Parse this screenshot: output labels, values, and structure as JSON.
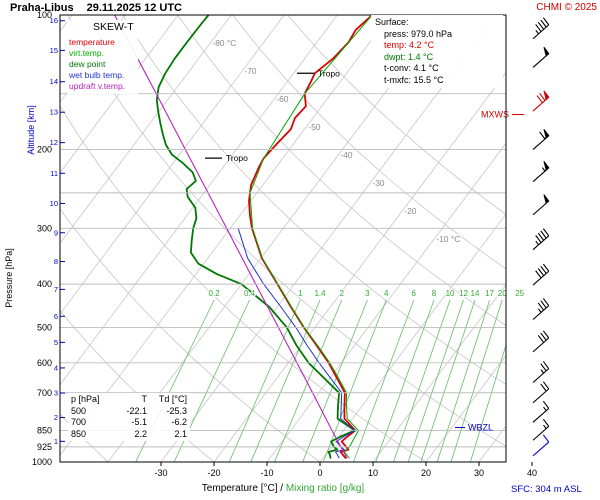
{
  "header": {
    "station": "Praha-Libus",
    "datetime": "29.11.2025 12 UTC",
    "copyright": "CHMI © 2025"
  },
  "colors": {
    "copyright": "#cc0000",
    "axis_blue": "#0000cc",
    "mixing_green": "#33aa33",
    "grid": "#bdbdbd"
  },
  "legend": {
    "title": "SKEW-T",
    "items": [
      {
        "label": "temperature",
        "color": "#dd0000"
      },
      {
        "label": "virt.temp.",
        "color": "#00aa00"
      },
      {
        "label": "dew point",
        "color": "#007700"
      },
      {
        "label": "wet bulb temp.",
        "color": "#2233cc"
      },
      {
        "label": "updraft v.temp.",
        "color": "#bb22bb"
      }
    ]
  },
  "surface_info": {
    "title": "Surface:",
    "rows": [
      {
        "text": "press: 979.0 hPa",
        "color": "#000000"
      },
      {
        "text": "temp: 4.2 °C",
        "color": "#dd0000"
      },
      {
        "text": "dwpt: 1.4 °C",
        "color": "#007700"
      },
      {
        "text": "t-conv: 4.1 °C",
        "color": "#000000"
      },
      {
        "text": "t-mxfc: 15.5 °C",
        "color": "#000000"
      }
    ]
  },
  "level_table": {
    "headers": [
      "p [hPa]",
      "T",
      "Td [°C]"
    ],
    "rows": [
      [
        "500",
        "-22.1",
        "-25.3"
      ],
      [
        "700",
        "-5.1",
        "-6.2"
      ],
      [
        "850",
        "2.2",
        "2.1"
      ]
    ]
  },
  "labels": {
    "tropo": "Tropo",
    "mxws": "MXWS",
    "wbzl": "WBZL",
    "sfc": "SFC: 304 m ASL",
    "x_axis_black": "Temperature [°C] /",
    "x_axis_green": "Mixing ratio [g/kg]",
    "pressure_axis": "Pressure [hPa]",
    "altitude_axis": "Altitude [km]"
  },
  "chart_data": {
    "type": "line",
    "variant": "skew-t-log-p",
    "title": "Skew-T diagram Praha-Libus 29.11.2025 12 UTC",
    "x_axis": {
      "label": "Temperature [°C]",
      "ticks": [
        -30,
        -20,
        -10,
        0,
        10,
        20,
        30,
        40
      ]
    },
    "y_axis": {
      "label": "Pressure [hPa]",
      "scale": "log",
      "range": [
        100,
        1000
      ],
      "gridline_ticks": [
        100,
        150,
        200,
        250,
        300,
        400,
        500,
        600,
        700,
        850,
        925,
        1000
      ],
      "labeled_ticks": [
        100,
        200,
        300,
        400,
        500,
        600,
        700,
        850,
        925,
        1000
      ]
    },
    "altitude_ticks": [
      {
        "km": 1,
        "hpa": 899
      },
      {
        "km": 2,
        "hpa": 795
      },
      {
        "km": 3,
        "hpa": 701
      },
      {
        "km": 4,
        "hpa": 616
      },
      {
        "km": 5,
        "hpa": 540
      },
      {
        "km": 6,
        "hpa": 472
      },
      {
        "km": 7,
        "hpa": 411
      },
      {
        "km": 8,
        "hpa": 356
      },
      {
        "km": 9,
        "hpa": 307
      },
      {
        "km": 10,
        "hpa": 264
      },
      {
        "km": 11,
        "hpa": 226
      },
      {
        "km": 12,
        "hpa": 193
      },
      {
        "km": 13,
        "hpa": 165
      },
      {
        "km": 14,
        "hpa": 141
      },
      {
        "km": 15,
        "hpa": 120
      },
      {
        "km": 16,
        "hpa": 103
      }
    ],
    "isotherm_labels": [
      {
        "t": -80,
        "label": "-80 °C"
      },
      {
        "t": -70,
        "label": "-70"
      },
      {
        "t": -60,
        "label": "-60"
      },
      {
        "t": -50,
        "label": "-50"
      },
      {
        "t": -40,
        "label": "-40"
      },
      {
        "t": -30,
        "label": "-30"
      },
      {
        "t": -20,
        "label": "-20"
      },
      {
        "t": -10,
        "label": "-10 °C"
      }
    ],
    "isotherm_range_c": [
      -120,
      40
    ],
    "isotherm_step_c": 10,
    "dry_adiabats_theta_c": [
      -40,
      -20,
      0,
      20,
      40,
      60,
      80,
      100,
      120
    ],
    "mixing_ratio_lines_gkg": [
      0.2,
      0.4,
      1,
      1.4,
      2,
      3,
      4,
      6,
      8,
      10,
      12,
      14,
      17,
      20,
      25
    ],
    "tropopauses_hpa": [
      209,
      135
    ],
    "mxws_hpa": 167,
    "wbzl_hpa": 837,
    "series": [
      {
        "name": "temperature",
        "color": "#dd0000",
        "width": 1.8,
        "points": [
          [
            979,
            4.2
          ],
          [
            962,
            3.2
          ],
          [
            950,
            2.5
          ],
          [
            938,
            3.6
          ],
          [
            925,
            2.8
          ],
          [
            900,
            1.2
          ],
          [
            875,
            1.6
          ],
          [
            850,
            2.2
          ],
          [
            800,
            -1.5
          ],
          [
            750,
            -3.3
          ],
          [
            700,
            -5.1
          ],
          [
            650,
            -8.6
          ],
          [
            600,
            -12.4
          ],
          [
            550,
            -17.0
          ],
          [
            500,
            -22.1
          ],
          [
            450,
            -27.4
          ],
          [
            400,
            -33.2
          ],
          [
            350,
            -39.8
          ],
          [
            300,
            -45.9
          ],
          [
            280,
            -48.2
          ],
          [
            260,
            -50.4
          ],
          [
            240,
            -52.2
          ],
          [
            220,
            -53.2
          ],
          [
            209,
            -53.6
          ],
          [
            195,
            -53.2
          ],
          [
            180,
            -52.6
          ],
          [
            170,
            -53.4
          ],
          [
            160,
            -53.0
          ],
          [
            150,
            -55.0
          ],
          [
            140,
            -55.6
          ],
          [
            135,
            -56.0
          ],
          [
            125,
            -54.6
          ],
          [
            115,
            -54.0
          ],
          [
            108,
            -54.4
          ],
          [
            100,
            -53.4
          ]
        ]
      },
      {
        "name": "virt_temp",
        "color": "#00aa00",
        "width": 1.0,
        "points": [
          [
            979,
            4.9
          ],
          [
            950,
            3.2
          ],
          [
            925,
            3.4
          ],
          [
            850,
            2.8
          ],
          [
            800,
            -1.0
          ],
          [
            750,
            -2.9
          ],
          [
            700,
            -4.8
          ],
          [
            650,
            -8.3
          ],
          [
            600,
            -12.2
          ],
          [
            550,
            -16.8
          ],
          [
            500,
            -22.0
          ],
          [
            450,
            -27.3
          ],
          [
            400,
            -33.1
          ],
          [
            350,
            -39.7
          ],
          [
            300,
            -45.8
          ],
          [
            250,
            -51.3
          ],
          [
            209,
            -53.6
          ],
          [
            150,
            -55.0
          ],
          [
            100,
            -53.4
          ]
        ]
      },
      {
        "name": "dew_point",
        "color": "#007700",
        "width": 1.8,
        "points": [
          [
            979,
            1.4
          ],
          [
            962,
            0.8
          ],
          [
            950,
            0.2
          ],
          [
            938,
            1.5
          ],
          [
            925,
            0.5
          ],
          [
            900,
            -0.8
          ],
          [
            875,
            0.4
          ],
          [
            850,
            2.1
          ],
          [
            800,
            -2.8
          ],
          [
            750,
            -4.5
          ],
          [
            700,
            -6.2
          ],
          [
            650,
            -11.0
          ],
          [
            600,
            -16.2
          ],
          [
            550,
            -20.8
          ],
          [
            500,
            -25.3
          ],
          [
            450,
            -31.5
          ],
          [
            400,
            -40.0
          ],
          [
            380,
            -46.0
          ],
          [
            360,
            -51.0
          ],
          [
            340,
            -54.0
          ],
          [
            320,
            -55.5
          ],
          [
            300,
            -57.0
          ],
          [
            285,
            -57.8
          ],
          [
            270,
            -59.5
          ],
          [
            255,
            -62.5
          ],
          [
            245,
            -63.8
          ],
          [
            235,
            -63.2
          ],
          [
            225,
            -65.0
          ],
          [
            215,
            -68.0
          ],
          [
            205,
            -71.5
          ],
          [
            195,
            -74.0
          ],
          [
            185,
            -76.0
          ],
          [
            175,
            -78.0
          ],
          [
            165,
            -80.0
          ],
          [
            155,
            -82.0
          ],
          [
            145,
            -83.5
          ],
          [
            135,
            -84.2
          ],
          [
            125,
            -84.5
          ],
          [
            115,
            -84.5
          ],
          [
            105,
            -84.4
          ],
          [
            100,
            -84.3
          ]
        ]
      },
      {
        "name": "wet_bulb",
        "color": "#2233cc",
        "width": 1.0,
        "points": [
          [
            979,
            3.0
          ],
          [
            962,
            2.2
          ],
          [
            950,
            1.5
          ],
          [
            938,
            2.8
          ],
          [
            925,
            1.8
          ],
          [
            900,
            0.2
          ],
          [
            875,
            1.0
          ],
          [
            850,
            2.1
          ],
          [
            800,
            -2.2
          ],
          [
            750,
            -3.9
          ],
          [
            700,
            -5.7
          ],
          [
            650,
            -9.8
          ],
          [
            600,
            -14.2
          ],
          [
            550,
            -18.8
          ],
          [
            500,
            -23.6
          ],
          [
            450,
            -29.3
          ],
          [
            400,
            -35.8
          ],
          [
            350,
            -42.5
          ],
          [
            300,
            -48.5
          ]
        ]
      },
      {
        "name": "updraft_virt_temp",
        "color": "#bb22bb",
        "width": 1.1,
        "points": [
          [
            979,
            4.5
          ],
          [
            925,
            1.8
          ],
          [
            850,
            -2.2
          ],
          [
            700,
            -11.2
          ],
          [
            600,
            -18.4
          ],
          [
            500,
            -26.9
          ],
          [
            400,
            -37.3
          ],
          [
            300,
            -50.7
          ],
          [
            250,
            -59.2
          ],
          [
            200,
            -69.6
          ],
          [
            150,
            -83.0
          ],
          [
            100,
            -102.0
          ]
        ]
      }
    ],
    "wind_barbs": [
      {
        "p": 113,
        "speed_kt": 45,
        "color": "#000000"
      },
      {
        "p": 131,
        "speed_kt": 50,
        "color": "#000000"
      },
      {
        "p": 164,
        "speed_kt": 70,
        "color": "#cc0000"
      },
      {
        "p": 200,
        "speed_kt": 60,
        "color": "#000000"
      },
      {
        "p": 236,
        "speed_kt": 55,
        "color": "#000000"
      },
      {
        "p": 280,
        "speed_kt": 50,
        "color": "#000000"
      },
      {
        "p": 335,
        "speed_kt": 45,
        "color": "#000000"
      },
      {
        "p": 402,
        "speed_kt": 40,
        "color": "#000000"
      },
      {
        "p": 480,
        "speed_kt": 35,
        "color": "#000000"
      },
      {
        "p": 567,
        "speed_kt": 30,
        "color": "#000000"
      },
      {
        "p": 664,
        "speed_kt": 25,
        "color": "#000000"
      },
      {
        "p": 737,
        "speed_kt": 20,
        "color": "#000000"
      },
      {
        "p": 815,
        "speed_kt": 15,
        "color": "#000000"
      },
      {
        "p": 894,
        "speed_kt": 15,
        "color": "#000000"
      },
      {
        "p": 969,
        "speed_kt": 10,
        "color": "#0000cc"
      }
    ]
  }
}
